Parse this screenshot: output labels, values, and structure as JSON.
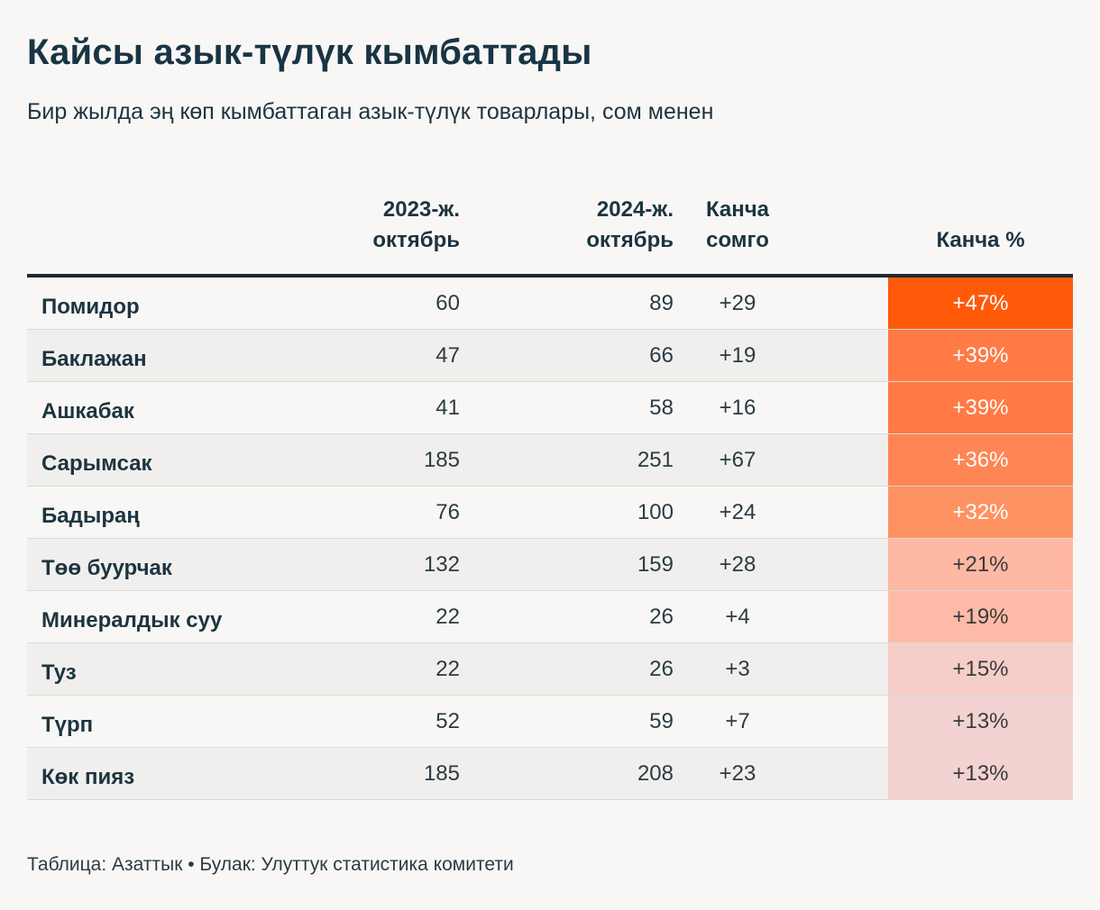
{
  "chart_data": {
    "type": "table",
    "title": "Кайсы азык-түлүк кымбаттады",
    "subtitle": "Бир жылда эң көп кымбаттаган азык-түлүк товарлары, сом менен",
    "columns": {
      "col_2023": [
        "2023-ж.",
        "октябрь"
      ],
      "col_2024": [
        "2024-ж.",
        "октябрь"
      ],
      "col_som": [
        "Канча",
        "сомго"
      ],
      "col_pct": "Канча %"
    },
    "rows": [
      {
        "name": "Помидор",
        "v2023": "60",
        "v2024": "89",
        "som": "+29",
        "pct": "+47%",
        "color": "#ff5a0a"
      },
      {
        "name": "Баклажан",
        "v2023": "47",
        "v2024": "66",
        "som": "+19",
        "pct": "+39%",
        "color": "#ff7a45"
      },
      {
        "name": "Ашкабак",
        "v2023": "41",
        "v2024": "58",
        "som": "+16",
        "pct": "+39%",
        "color": "#ff7a45"
      },
      {
        "name": "Сарымсак",
        "v2023": "185",
        "v2024": "251",
        "som": "+67",
        "pct": "+36%",
        "color": "#ff8555"
      },
      {
        "name": "Бадыраң",
        "v2023": "76",
        "v2024": "100",
        "som": "+24",
        "pct": "+32%",
        "color": "#ff9262"
      },
      {
        "name": "Төө буурчак",
        "v2023": "132",
        "v2024": "159",
        "som": "+28",
        "pct": "+21%",
        "color": "#ffb8a4"
      },
      {
        "name": "Минералдык суу",
        "v2023": "22",
        "v2024": "26",
        "som": "+4",
        "pct": "+19%",
        "color": "#fdbba7"
      },
      {
        "name": "Туз",
        "v2023": "22",
        "v2024": "26",
        "som": "+3",
        "pct": "+15%",
        "color": "#f6cec8"
      },
      {
        "name": "Түрп",
        "v2023": "52",
        "v2024": "59",
        "som": "+7",
        "pct": "+13%",
        "color": "#f2d3d1"
      },
      {
        "name": "Көк пияз",
        "v2023": "185",
        "v2024": "208",
        "som": "+23",
        "pct": "+13%",
        "color": "#f2d3d1"
      }
    ],
    "footer": "Таблица: Азаттык • Булак: Улуттук статистика комитети"
  }
}
